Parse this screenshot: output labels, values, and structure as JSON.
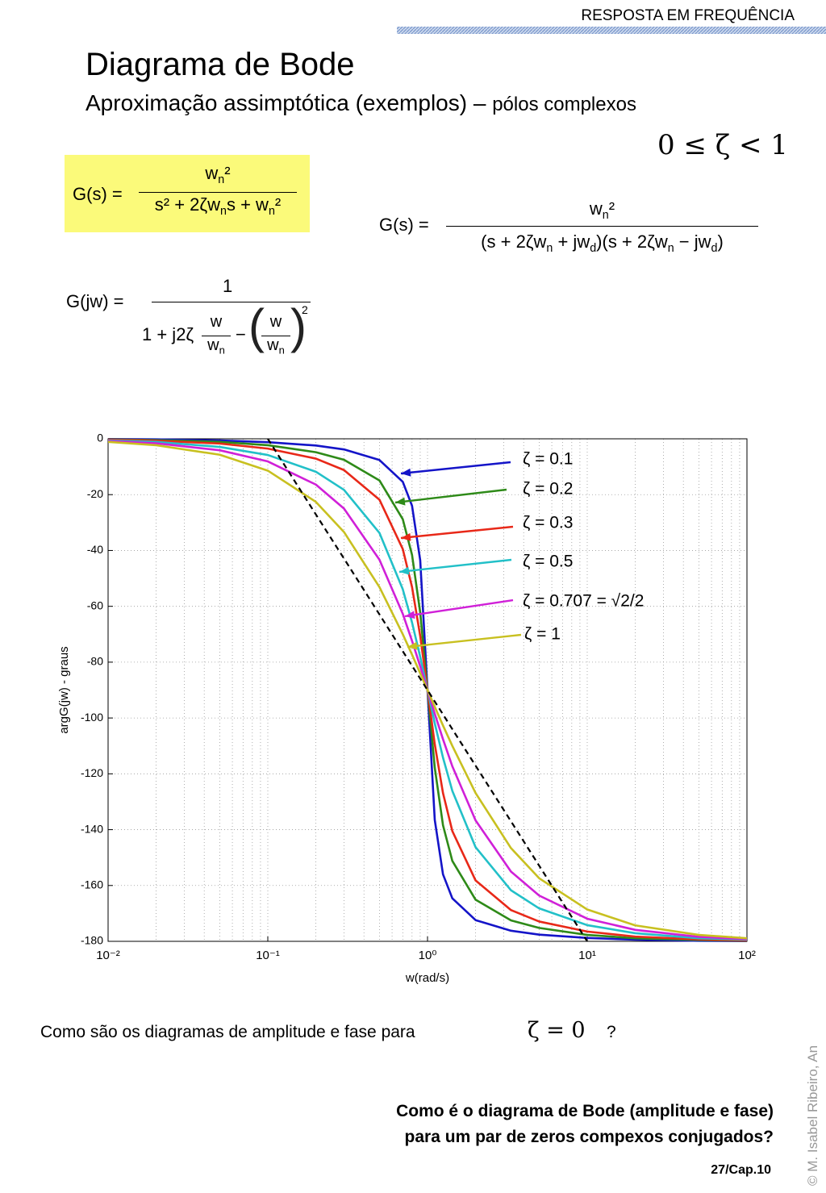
{
  "header": {
    "section": "RESPOSTA EM FREQUÊNCIA",
    "title": "Diagrama de Bode",
    "subtitle": "Aproximação assimptótica (exemplos) –",
    "subtitle_small": "pólos complexos",
    "condition": "0 ≤ ζ < 1"
  },
  "equations": {
    "eq1": {
      "lhs": "G(s) =",
      "num": [
        "w",
        "n",
        "²"
      ],
      "den": [
        "s² + 2ζw",
        "n",
        "s + w",
        "n",
        "²"
      ]
    },
    "eq2": {
      "lhs": "G(s) =",
      "num": [
        "w",
        "n",
        "²"
      ],
      "den": [
        "(s + 2ζw",
        "n",
        " + jw",
        "d",
        ")(s + 2ζw",
        "n",
        " − jw",
        "d",
        ")"
      ]
    },
    "eq3": {
      "lhs": "G(jw) =",
      "num": "1",
      "den_start": "1 + j2ζ",
      "f1_num": "w",
      "f1_den": [
        "w",
        "n"
      ],
      "minus": "−",
      "open": "(",
      "f2_num": "w",
      "f2_den": [
        "w",
        "n"
      ],
      "close": ")",
      "power": "2"
    }
  },
  "chart_data": {
    "type": "line",
    "x_label": "w(rad/s)",
    "y_label": "argG(jw) - graus",
    "x_scale": "log",
    "grid": true,
    "xlim": [
      0.01,
      100
    ],
    "xticks": [
      {
        "value": 0.01,
        "label": "10⁻²"
      },
      {
        "value": 0.1,
        "label": "10⁻¹"
      },
      {
        "value": 1,
        "label": "10⁰"
      },
      {
        "value": 10,
        "label": "10¹"
      },
      {
        "value": 100,
        "label": "10²"
      }
    ],
    "ylim": [
      -180,
      0
    ],
    "yticks": [
      0,
      -20,
      -40,
      -60,
      -80,
      -100,
      -120,
      -140,
      -160,
      -180
    ],
    "x": [
      0.01,
      0.02,
      0.05,
      0.1,
      0.2,
      0.3,
      0.5,
      0.7,
      0.8,
      0.9,
      1,
      1.11,
      1.25,
      1.43,
      2,
      3.33,
      5,
      10,
      20,
      50,
      100
    ],
    "series": [
      {
        "name": "ζ = 0.1",
        "color": "#1414c8",
        "values": [
          -0.1,
          -0.2,
          -0.6,
          -1.2,
          -2.4,
          -3.8,
          -7.6,
          -15.4,
          -24.0,
          -43.5,
          -90,
          -136.5,
          -156.0,
          -164.6,
          -172.4,
          -176.2,
          -177.6,
          -178.8,
          -179.4,
          -179.8,
          -179.9
        ]
      },
      {
        "name": "ζ = 0.2",
        "color": "#2e8a18",
        "values": [
          -0.2,
          -0.5,
          -1.1,
          -2.3,
          -4.8,
          -7.5,
          -14.9,
          -28.8,
          -41.6,
          -62.2,
          -90,
          -117.8,
          -138.4,
          -151.2,
          -165.1,
          -172.5,
          -175.2,
          -177.7,
          -178.9,
          -179.5,
          -179.8
        ]
      },
      {
        "name": "ζ = 0.3",
        "color": "#e82818",
        "values": [
          -0.3,
          -0.7,
          -1.7,
          -3.5,
          -7.1,
          -11.2,
          -21.8,
          -39.5,
          -53.1,
          -70.6,
          -90,
          -109.4,
          -126.9,
          -140.5,
          -158.2,
          -168.8,
          -172.9,
          -176.5,
          -178.3,
          -179.3,
          -179.7
        ]
      },
      {
        "name": "ζ = 0.5",
        "color": "#22c0c8",
        "values": [
          -0.6,
          -1.1,
          -2.9,
          -5.8,
          -11.8,
          -18.3,
          -33.7,
          -53.9,
          -65.8,
          -78.1,
          -90,
          -101.9,
          -114.2,
          -126.1,
          -146.3,
          -161.7,
          -168.2,
          -174.2,
          -177.1,
          -178.9,
          -179.4
        ]
      },
      {
        "name": "ζ = 0.707 = √2/2",
        "color": "#d020d8",
        "values": [
          -0.8,
          -1.6,
          -4.1,
          -8.1,
          -16.4,
          -25.0,
          -43.3,
          -62.7,
          -72.4,
          -81.5,
          -90,
          -98.5,
          -107.6,
          -117.3,
          -136.7,
          -155.0,
          -163.6,
          -171.9,
          -175.9,
          -178.4,
          -179.2
        ]
      },
      {
        "name": "ζ = 1",
        "color": "#c8c020",
        "values": [
          -1.1,
          -2.3,
          -5.7,
          -11.4,
          -22.6,
          -33.4,
          -53.1,
          -70.0,
          -77.3,
          -84.0,
          -90,
          -96.0,
          -102.7,
          -110.0,
          -126.9,
          -146.6,
          -157.4,
          -168.6,
          -174.3,
          -177.7,
          -178.9
        ]
      },
      {
        "color": "#000000",
        "dashed": true,
        "values": [
          null,
          null,
          null,
          0,
          -27.1,
          -42.9,
          -62.9,
          -76.1,
          -81.3,
          -85.9,
          -90,
          -94.1,
          -98.7,
          -104.0,
          -117.1,
          -137.0,
          -152.9,
          -180,
          null,
          null,
          null
        ]
      }
    ]
  },
  "questions": {
    "q1": "Como são os diagramas de amplitude e fase para",
    "q1_math": "ζ = 0",
    "q1_end": "?",
    "q2_line1": "Como é o diagrama de Bode (amplitude e fase)",
    "q2_line2": "para um par de zeros compexos conjugados?"
  },
  "footer": {
    "page": "27/Cap.10",
    "copyright": "© M. Isabel Ribeiro, An"
  }
}
